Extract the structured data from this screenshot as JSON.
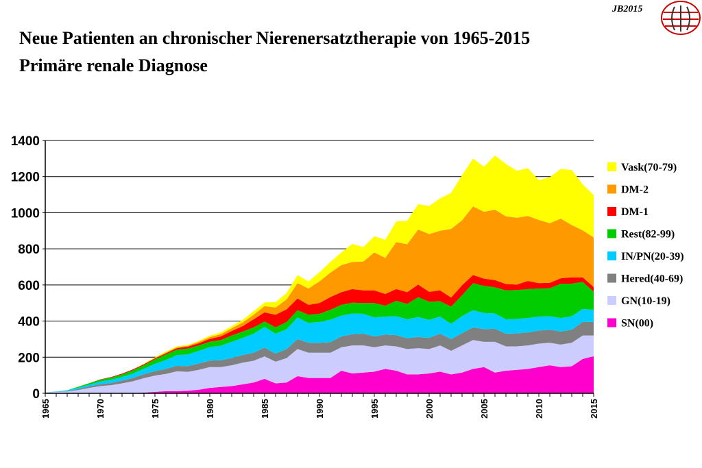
{
  "header": {
    "title": "Neue Patienten an chronischer Nierenersatztherapie von 1965-2015",
    "subtitle": "Primäre renale Diagnose",
    "badge": "JB2015"
  },
  "chart_data": {
    "type": "area",
    "stacked": true,
    "title": "Neue Patienten an chronischer Nierenersatztherapie von 1965-2015",
    "subtitle": "Primäre renale Diagnose",
    "xlabel": "",
    "ylabel": "",
    "ylim": [
      0,
      1400
    ],
    "yticks": [
      0,
      200,
      400,
      600,
      800,
      1000,
      1200,
      1400
    ],
    "xlim": [
      1965,
      2015
    ],
    "xticks": [
      1965,
      1970,
      1975,
      1980,
      1985,
      1990,
      1995,
      2000,
      2005,
      2010,
      2015
    ],
    "grid": "horizontal",
    "legend_position": "right",
    "x": [
      1965,
      1966,
      1967,
      1968,
      1969,
      1970,
      1971,
      1972,
      1973,
      1974,
      1975,
      1976,
      1977,
      1978,
      1979,
      1980,
      1981,
      1982,
      1983,
      1984,
      1985,
      1986,
      1987,
      1988,
      1989,
      1990,
      1991,
      1992,
      1993,
      1994,
      1995,
      1996,
      1997,
      1998,
      1999,
      2000,
      2001,
      2002,
      2003,
      2004,
      2005,
      2006,
      2007,
      2008,
      2009,
      2010,
      2011,
      2012,
      2013,
      2014,
      2015
    ],
    "series": [
      {
        "name": "SN(00)",
        "color": "#ff00cc",
        "values": [
          0,
          0,
          0,
          0,
          0,
          0,
          0,
          0,
          2,
          4,
          8,
          12,
          12,
          14,
          20,
          30,
          35,
          40,
          50,
          60,
          80,
          55,
          60,
          95,
          85,
          85,
          85,
          125,
          110,
          115,
          120,
          135,
          125,
          105,
          105,
          110,
          120,
          105,
          115,
          135,
          145,
          115,
          125,
          130,
          135,
          145,
          155,
          145,
          150,
          190,
          205
        ]
      },
      {
        "name": "GN(10-19)",
        "color": "#ccccff",
        "values": [
          5,
          8,
          10,
          18,
          30,
          40,
          45,
          55,
          65,
          80,
          90,
          95,
          110,
          105,
          110,
          115,
          110,
          115,
          120,
          120,
          125,
          120,
          135,
          150,
          140,
          140,
          140,
          130,
          155,
          150,
          135,
          130,
          135,
          140,
          145,
          135,
          145,
          130,
          150,
          160,
          140,
          170,
          135,
          130,
          130,
          130,
          125,
          125,
          130,
          130,
          115
        ]
      },
      {
        "name": "Hered(40-69)",
        "color": "#808080",
        "values": [
          0,
          0,
          2,
          5,
          8,
          10,
          12,
          15,
          18,
          22,
          25,
          28,
          30,
          32,
          35,
          36,
          38,
          40,
          42,
          45,
          48,
          45,
          50,
          55,
          55,
          55,
          58,
          60,
          62,
          65,
          60,
          60,
          62,
          60,
          62,
          62,
          65,
          65,
          68,
          70,
          70,
          72,
          70,
          72,
          72,
          72,
          72,
          72,
          72,
          75,
          75
        ]
      },
      {
        "name": "IN/PN(20-39)",
        "color": "#00ccff",
        "values": [
          0,
          2,
          5,
          8,
          10,
          15,
          18,
          20,
          25,
          30,
          40,
          50,
          60,
          65,
          70,
          75,
          80,
          90,
          95,
          105,
          115,
          110,
          110,
          120,
          110,
          115,
          125,
          115,
          115,
          110,
          105,
          100,
          105,
          105,
          110,
          100,
          95,
          85,
          95,
          95,
          90,
          85,
          80,
          80,
          80,
          78,
          75,
          75,
          75,
          72,
          68
        ]
      },
      {
        "name": "Rest(82-99)",
        "color": "#00cc00",
        "values": [
          0,
          0,
          0,
          5,
          8,
          10,
          12,
          15,
          18,
          20,
          25,
          30,
          30,
          32,
          30,
          30,
          32,
          35,
          35,
          35,
          30,
          35,
          40,
          40,
          45,
          45,
          55,
          60,
          60,
          60,
          80,
          60,
          85,
          85,
          110,
          100,
          85,
          95,
          115,
          150,
          150,
          145,
          160,
          160,
          160,
          155,
          155,
          190,
          180,
          150,
          100
        ]
      },
      {
        "name": "DM-1",
        "color": "#ff0000",
        "values": [
          0,
          0,
          0,
          0,
          0,
          2,
          3,
          4,
          5,
          5,
          5,
          6,
          8,
          10,
          12,
          15,
          20,
          25,
          30,
          45,
          50,
          70,
          70,
          65,
          55,
          60,
          70,
          70,
          75,
          70,
          70,
          65,
          65,
          65,
          70,
          55,
          60,
          50,
          55,
          45,
          40,
          40,
          35,
          30,
          45,
          30,
          30,
          30,
          35,
          25,
          25
        ]
      },
      {
        "name": "DM-2",
        "color": "#ff9900",
        "values": [
          0,
          0,
          0,
          0,
          0,
          0,
          0,
          0,
          0,
          2,
          3,
          5,
          5,
          5,
          8,
          10,
          12,
          15,
          20,
          25,
          35,
          40,
          55,
          85,
          90,
          120,
          135,
          150,
          150,
          160,
          210,
          200,
          260,
          265,
          305,
          320,
          330,
          380,
          360,
          380,
          370,
          390,
          375,
          370,
          360,
          350,
          330,
          330,
          290,
          260,
          275
        ]
      },
      {
        "name": "Vask(70-79)",
        "color": "#ffff00",
        "values": [
          0,
          0,
          0,
          0,
          0,
          0,
          0,
          0,
          0,
          2,
          3,
          5,
          5,
          5,
          5,
          8,
          10,
          12,
          15,
          20,
          20,
          30,
          35,
          45,
          40,
          50,
          60,
          70,
          100,
          80,
          90,
          100,
          115,
          130,
          140,
          155,
          180,
          200,
          250,
          265,
          250,
          300,
          290,
          260,
          265,
          220,
          255,
          275,
          305,
          255,
          235
        ]
      }
    ]
  }
}
